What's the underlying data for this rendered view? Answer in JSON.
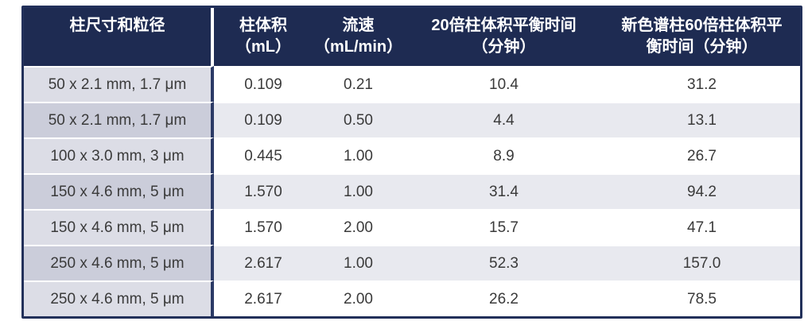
{
  "table": {
    "headers": [
      {
        "line1": "柱尺寸和粒径",
        "line2": ""
      },
      {
        "line1": "柱体积",
        "line2": "（mL）"
      },
      {
        "line1": "流速",
        "line2": "（mL/min）"
      },
      {
        "line1": "20倍柱体积平衡时间",
        "line2": "（分钟）"
      },
      {
        "line1": "新色谱柱60倍柱体积平",
        "line2": "衡时间（分钟）"
      }
    ],
    "rows": [
      {
        "size": "50 x 2.1 mm, 1.7 μm",
        "volume": "0.109",
        "flow": "0.21",
        "t20": "10.4",
        "t60": "31.2"
      },
      {
        "size": "50 x 2.1 mm, 1.7 μm",
        "volume": "0.109",
        "flow": "0.50",
        "t20": "4.4",
        "t60": "13.1"
      },
      {
        "size": "100 x 3.0 mm, 3 μm",
        "volume": "0.445",
        "flow": "1.00",
        "t20": "8.9",
        "t60": "26.7"
      },
      {
        "size": "150 x 4.6 mm, 5 μm",
        "volume": "1.570",
        "flow": "1.00",
        "t20": "31.4",
        "t60": "94.2"
      },
      {
        "size": "150 x 4.6 mm, 5 μm",
        "volume": "1.570",
        "flow": "2.00",
        "t20": "15.7",
        "t60": "47.1"
      },
      {
        "size": "250 x 4.6 mm, 5 μm",
        "volume": "2.617",
        "flow": "1.00",
        "t20": "52.3",
        "t60": "157.0"
      },
      {
        "size": "250 x 4.6 mm, 5 μm",
        "volume": "2.617",
        "flow": "2.00",
        "t20": "26.2",
        "t60": "78.5"
      }
    ],
    "colors": {
      "header_bg": "#1e2b52",
      "header_text": "#ffffff",
      "first_col_odd": "#dcdde6",
      "first_col_even": "#cbcdda",
      "stripe_even": "#e8e9ef",
      "row_odd": "#ffffff",
      "body_text": "#3a3a3a",
      "border": "#22305a"
    }
  },
  "chart_data": {
    "type": "table",
    "columns": [
      "柱尺寸和粒径",
      "柱体积（mL）",
      "流速（mL/min）",
      "20倍柱体积平衡时间（分钟）",
      "新色谱柱60倍柱体积平衡时间（分钟）"
    ],
    "rows": [
      [
        "50 x 2.1 mm, 1.7 μm",
        0.109,
        0.21,
        10.4,
        31.2
      ],
      [
        "50 x 2.1 mm, 1.7 μm",
        0.109,
        0.5,
        4.4,
        13.1
      ],
      [
        "100 x 3.0 mm, 3 μm",
        0.445,
        1.0,
        8.9,
        26.7
      ],
      [
        "150 x 4.6 mm, 5 μm",
        1.57,
        1.0,
        31.4,
        94.2
      ],
      [
        "150 x 4.6 mm, 5 μm",
        1.57,
        2.0,
        15.7,
        47.1
      ],
      [
        "250 x 4.6 mm, 5 μm",
        2.617,
        1.0,
        52.3,
        157.0
      ],
      [
        "250 x 4.6 mm, 5 μm",
        2.617,
        2.0,
        26.2,
        78.5
      ]
    ]
  }
}
